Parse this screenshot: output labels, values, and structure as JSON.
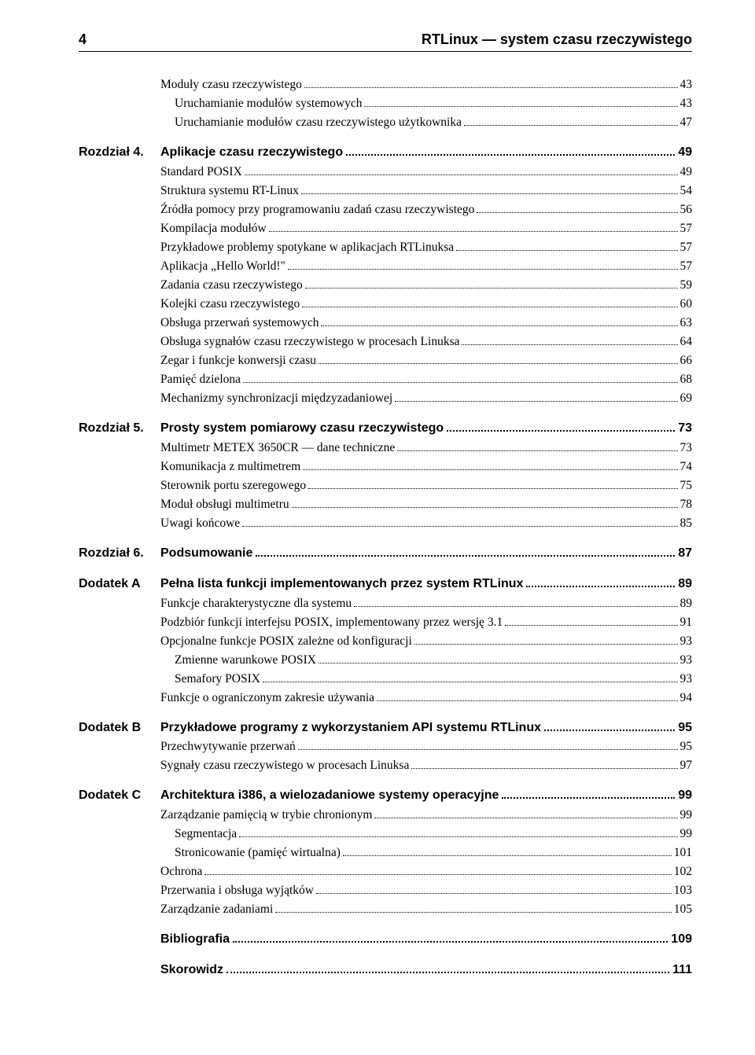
{
  "header": {
    "page_number": "4",
    "title": "RTLinux — system czasu rzeczywistego"
  },
  "orphan_items": [
    {
      "title": "Moduły czasu rzeczywistego",
      "page": "43",
      "sub": false
    },
    {
      "title": "Uruchamianie modułów systemowych",
      "page": "43",
      "sub": true
    },
    {
      "title": "Uruchamianie modułów czasu rzeczywistego użytkownika",
      "page": "47",
      "sub": true
    }
  ],
  "chapters": [
    {
      "label": "Rozdział 4.",
      "title": "Aplikacje czasu rzeczywistego",
      "page": "49",
      "items": [
        {
          "title": "Standard POSIX",
          "page": "49",
          "sub": false
        },
        {
          "title": "Struktura systemu RT-Linux",
          "page": "54",
          "sub": false
        },
        {
          "title": "Źródła pomocy przy programowaniu zadań czasu rzeczywistego",
          "page": "56",
          "sub": false
        },
        {
          "title": "Kompilacja modułów",
          "page": "57",
          "sub": false
        },
        {
          "title": "Przykładowe problemy spotykane w aplikacjach RTLinuksa",
          "page": "57",
          "sub": false
        },
        {
          "title": "Aplikacja „Hello World!\"",
          "page": "57",
          "sub": false
        },
        {
          "title": "Zadania czasu rzeczywistego",
          "page": "59",
          "sub": false
        },
        {
          "title": "Kolejki czasu rzeczywistego",
          "page": "60",
          "sub": false
        },
        {
          "title": "Obsługa przerwań systemowych",
          "page": "63",
          "sub": false
        },
        {
          "title": "Obsługa sygnałów czasu rzeczywistego w procesach Linuksa",
          "page": "64",
          "sub": false
        },
        {
          "title": "Zegar i funkcje konwersji czasu",
          "page": "66",
          "sub": false
        },
        {
          "title": "Pamięć dzielona",
          "page": "68",
          "sub": false
        },
        {
          "title": "Mechanizmy synchronizacji międzyzadaniowej",
          "page": "69",
          "sub": false
        }
      ]
    },
    {
      "label": "Rozdział 5.",
      "title": "Prosty system pomiarowy czasu rzeczywistego",
      "page": "73",
      "items": [
        {
          "title": "Multimetr METEX 3650CR — dane techniczne",
          "page": "73",
          "sub": false
        },
        {
          "title": "Komunikacja z multimetrem",
          "page": "74",
          "sub": false
        },
        {
          "title": "Sterownik portu szeregowego",
          "page": "75",
          "sub": false
        },
        {
          "title": "Moduł obsługi multimetru",
          "page": "78",
          "sub": false
        },
        {
          "title": "Uwagi końcowe",
          "page": "85",
          "sub": false
        }
      ]
    },
    {
      "label": "Rozdział 6.",
      "title": "Podsumowanie",
      "page": "87",
      "items": []
    },
    {
      "label": "Dodatek A",
      "title": "Pełna lista funkcji implementowanych przez system RTLinux",
      "page": "89",
      "items": [
        {
          "title": "Funkcje charakterystyczne dla systemu",
          "page": "89",
          "sub": false
        },
        {
          "title": "Podzbiór funkcji interfejsu POSIX, implementowany przez wersję 3.1",
          "page": "91",
          "sub": false
        },
        {
          "title": "Opcjonalne funkcje POSIX zależne od konfiguracji",
          "page": "93",
          "sub": false
        },
        {
          "title": "Zmienne warunkowe POSIX",
          "page": "93",
          "sub": true
        },
        {
          "title": "Semafory POSIX",
          "page": "93",
          "sub": true
        },
        {
          "title": "Funkcje o ograniczonym zakresie używania",
          "page": "94",
          "sub": false
        }
      ]
    },
    {
      "label": "Dodatek B",
      "title": "Przykładowe programy z wykorzystaniem API systemu RTLinux",
      "page": "95",
      "items": [
        {
          "title": "Przechwytywanie przerwań",
          "page": "95",
          "sub": false
        },
        {
          "title": "Sygnały czasu rzeczywistego w procesach Linuksa",
          "page": "97",
          "sub": false
        }
      ]
    },
    {
      "label": "Dodatek C",
      "title": "Architektura i386, a wielozadaniowe systemy operacyjne",
      "page": "99",
      "items": [
        {
          "title": "Zarządzanie pamięcią w trybie chronionym",
          "page": "99",
          "sub": false
        },
        {
          "title": "Segmentacja",
          "page": "99",
          "sub": true
        },
        {
          "title": "Stronicowanie (pamięć wirtualna)",
          "page": "101",
          "sub": true
        },
        {
          "title": "Ochrona",
          "page": "102",
          "sub": false
        },
        {
          "title": "Przerwania i obsługa wyjątków",
          "page": "103",
          "sub": false
        },
        {
          "title": "Zarządzanie zadaniami",
          "page": "105",
          "sub": false
        }
      ]
    }
  ],
  "end_entries": [
    {
      "title": "Bibliografia",
      "page": "109"
    },
    {
      "title": "Skorowidz",
      "page": "111"
    }
  ]
}
